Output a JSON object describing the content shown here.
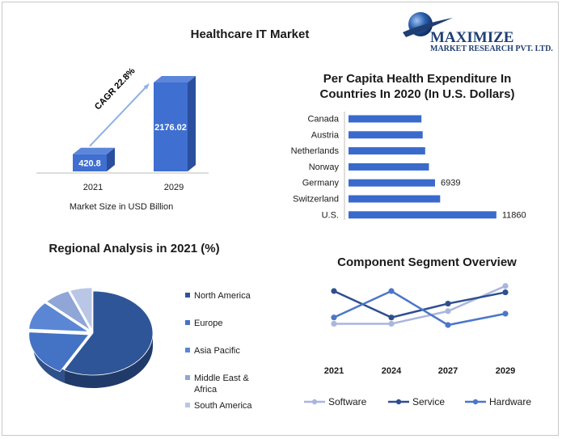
{
  "header": {
    "title": "Healthcare IT Market"
  },
  "logo": {
    "name": "MAXIMIZE",
    "tagline": "MARKET RESEARCH PVT. LTD.",
    "color": "#1f3f73"
  },
  "colors": {
    "bar_front": "#3f6fd0",
    "bar_side": "#2b4f9e",
    "bar_top": "#5b86dc",
    "hbar": "#3a6acb",
    "north_america": "#2e5597",
    "europe": "#4472c4",
    "asia_pacific": "#5b86d4",
    "middle_east": "#8fa6d6",
    "south_america": "#b9c6e6",
    "software": "#a9b6dc",
    "service": "#2e4f8f",
    "hardware": "#4b77c8"
  },
  "chart_data": [
    {
      "type": "bar",
      "categories": [
        "2021",
        "2029"
      ],
      "values": [
        420.8,
        2176.02
      ],
      "value_labels": [
        "420.8",
        "2176.02"
      ],
      "xlabel": "Market Size in USD Billion",
      "annotation": "CAGR 22.8%"
    },
    {
      "type": "bar",
      "orientation": "horizontal",
      "title": "Per Capita Health Expenditure In Countries In 2020 (In U.S. Dollars)",
      "title_lines": [
        "Per Capita Health Expenditure In",
        "Countries In 2020 (In U.S. Dollars)"
      ],
      "categories": [
        "Canada",
        "Austria",
        "Netherlands",
        "Norway",
        "Germany",
        "Switzerland",
        "U.S."
      ],
      "values": [
        5850,
        5950,
        6150,
        6450,
        6939,
        7350,
        11860
      ],
      "value_labels": [
        "",
        "",
        "",
        "",
        "6939",
        "",
        "11860"
      ],
      "xlim": [
        0,
        12000
      ]
    },
    {
      "type": "pie",
      "title": "Regional Analysis in 2021 (%)",
      "labels": [
        "North America",
        "Europe",
        "Asia Pacific",
        "Middle East & Africa",
        "South America"
      ],
      "legend_lines": [
        [
          "North America"
        ],
        [
          "Europe"
        ],
        [
          "Asia Pacific"
        ],
        [
          "Middle East &",
          "Africa"
        ],
        [
          "South America"
        ]
      ],
      "values": [
        58,
        18,
        11,
        7,
        6
      ],
      "legend": "right"
    },
    {
      "type": "line",
      "title": "Component Segment Overview",
      "categories": [
        "2021",
        "2024",
        "2027",
        "2029"
      ],
      "series": [
        {
          "name": "Software",
          "values": [
            1.0,
            1.0,
            2.0,
            4.0
          ]
        },
        {
          "name": "Service",
          "values": [
            3.6,
            1.5,
            2.6,
            3.5
          ]
        },
        {
          "name": "Hardware",
          "values": [
            1.5,
            3.6,
            0.9,
            1.8
          ]
        }
      ],
      "ylim": [
        0,
        4.5
      ],
      "legend": "bottom"
    }
  ]
}
